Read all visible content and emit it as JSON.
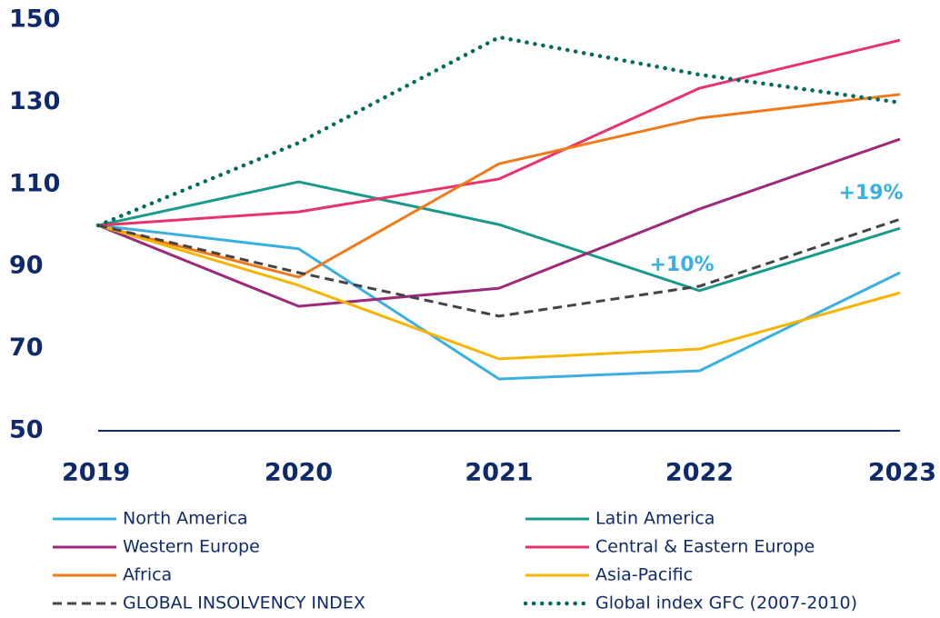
{
  "chart_data": {
    "type": "line",
    "categories": [
      "2019",
      "2020",
      "2021",
      "2022",
      "2023"
    ],
    "series": [
      {
        "name": "North America",
        "color": "#3ab0e0",
        "style": "solid",
        "values": [
          100,
          94.3,
          62.6,
          64.6,
          88.5
        ]
      },
      {
        "name": "Latin America",
        "color": "#1a9a8a",
        "style": "solid",
        "values": [
          100,
          110.6,
          100.2,
          84.1,
          99.3
        ]
      },
      {
        "name": "Western Europe",
        "color": "#9b2a7a",
        "style": "solid",
        "values": [
          100,
          80.3,
          84.7,
          104,
          121
        ]
      },
      {
        "name": "Central & Eastern Europe",
        "color": "#e8336a",
        "style": "solid",
        "values": [
          100,
          103.3,
          111.3,
          133.4,
          145.1
        ]
      },
      {
        "name": "Africa",
        "color": "#f07a1a",
        "style": "solid",
        "values": [
          100,
          87.4,
          115,
          126.1,
          131.9
        ]
      },
      {
        "name": "Asia-Pacific",
        "color": "#f7b500",
        "style": "solid",
        "values": [
          100,
          85.4,
          67.5,
          69.9,
          83.6
        ]
      },
      {
        "name": "GLOBAL INSOLVENCY INDEX",
        "color": "#444444",
        "style": "dashed",
        "values": [
          100,
          88.5,
          77.9,
          85.2,
          101.5
        ]
      },
      {
        "name": "Global index GFC (2007-2010)",
        "color": "#006b5e",
        "style": "dotted",
        "values": [
          100,
          120.1,
          145.8,
          136.7,
          129.9
        ]
      }
    ],
    "annotations": [
      "+10%",
      "+19%"
    ],
    "annotation_color": "#3ab0e0",
    "ylim": [
      50,
      150
    ],
    "yticks": [
      50,
      70,
      90,
      110,
      130,
      150
    ],
    "grid": false
  }
}
